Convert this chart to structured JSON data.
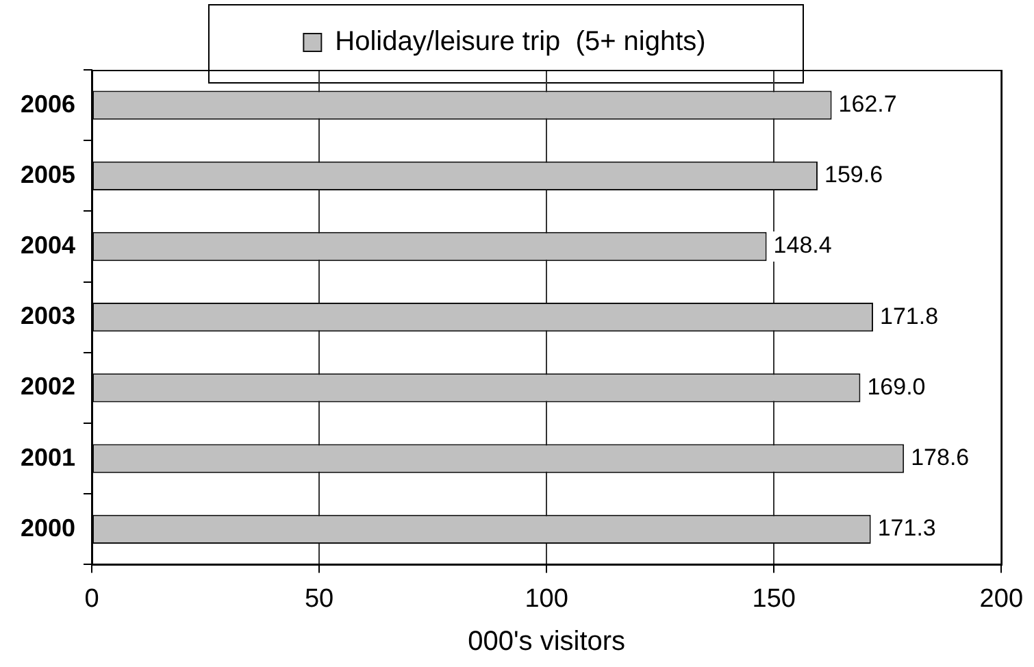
{
  "chart_data": {
    "type": "bar",
    "orientation": "horizontal",
    "categories": [
      "2006",
      "2005",
      "2004",
      "2003",
      "2002",
      "2001",
      "2000"
    ],
    "series": [
      {
        "name": "Holiday/leisure trip  (5+ nights)",
        "color": "#c0c0c0",
        "values": [
          162.7,
          159.6,
          148.4,
          171.8,
          169.0,
          178.6,
          171.3
        ],
        "value_labels": [
          "162.7",
          "159.6",
          "148.4",
          "171.8",
          "169.0",
          "178.6",
          "171.3"
        ]
      }
    ],
    "xlabel": "000's visitors",
    "xlim": [
      0,
      200
    ],
    "xticks": [
      0,
      50,
      100,
      150,
      200
    ],
    "grid": "x",
    "legend": "top"
  }
}
